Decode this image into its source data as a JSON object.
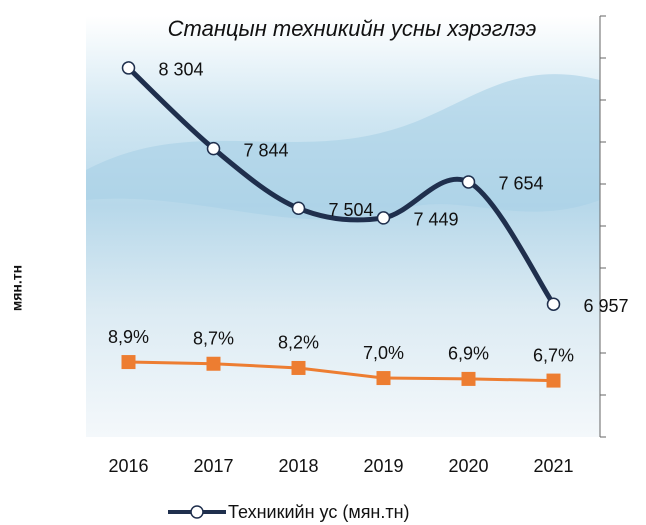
{
  "chart_data": {
    "type": "line",
    "title": "Станцын техникийн усны хэрэглээ",
    "y_label": "мян.тн",
    "categories": [
      "2016",
      "2017",
      "2018",
      "2019",
      "2020",
      "2021"
    ],
    "series": [
      {
        "name": "Техникийн ус (мян.тн)",
        "color": "#1f2f4d",
        "marker": "circle",
        "smooth": true,
        "values": [
          8304,
          7844,
          7504,
          7449,
          7654,
          6957
        ],
        "value_labels": [
          "8 304",
          "7 844",
          "7 504",
          "7 449",
          "7 654",
          "6 957"
        ]
      },
      {
        "color": "#ed7d31",
        "marker": "square",
        "axis": "y2",
        "values": [
          8.9,
          8.7,
          8.2,
          7.0,
          6.9,
          6.7
        ],
        "value_labels": [
          "8,9%",
          "8,7%",
          "8,2%",
          "7,0%",
          "6,9%",
          "6,7%"
        ]
      }
    ],
    "ylim": [
      6200,
      8600
    ],
    "y2lim": [
      0,
      50
    ],
    "legend": "bottom"
  }
}
